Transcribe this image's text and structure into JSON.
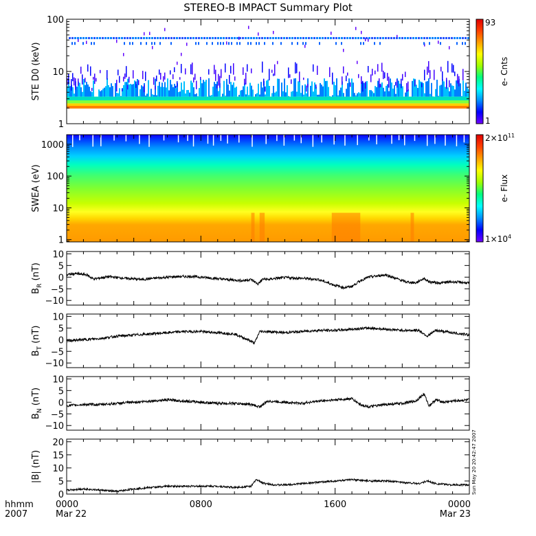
{
  "title": "STEREO-B IMPACT Summary Plot",
  "timestamp_label": "Sun May 20 20:42:47 2007",
  "x_axis": {
    "row1_label": "hhmm",
    "row2_label": "2007",
    "ticks": [
      {
        "t": 0,
        "row1": "0000",
        "row2": "Mar 22"
      },
      {
        "t": 8,
        "row1": "0800",
        "row2": ""
      },
      {
        "t": 16,
        "row1": "1600",
        "row2": ""
      },
      {
        "t": 24,
        "row1": "0000",
        "row2": "Mar 23"
      }
    ],
    "range_hours": [
      0,
      24
    ]
  },
  "colors": {
    "colorbar": [
      "#7000ff",
      "#0000ff",
      "#0090ff",
      "#00ffff",
      "#00ff80",
      "#a0ff00",
      "#ffff00",
      "#ffa000",
      "#ff4000",
      "#e00000"
    ],
    "line": "#000000"
  },
  "chart_data": [
    {
      "type": "heatmap",
      "panel": "ste",
      "ylabel": "STE D0 (keV)",
      "yscale": "log",
      "ylim": [
        1,
        100
      ],
      "yticks": [
        {
          "v": 1,
          "label": "1"
        },
        {
          "v": 10,
          "label": "10"
        },
        {
          "v": 100,
          "label": "100"
        }
      ],
      "colorbar_label": "e- Cnts",
      "colorbar_max": "93",
      "colorbar_min": "1",
      "background_band_kev": [
        2,
        5
      ],
      "peak_band_kev": 2.1,
      "constant_line_kev": 43
    },
    {
      "type": "heatmap",
      "panel": "swea",
      "ylabel": "SWEA (eV)",
      "yscale": "log",
      "ylim": [
        0.85,
        2000
      ],
      "yticks": [
        {
          "v": 1,
          "label": "1"
        },
        {
          "v": 10,
          "label": "10"
        },
        {
          "v": 100,
          "label": "100"
        },
        {
          "v": 1000,
          "label": "1000"
        }
      ],
      "colorbar_label": "e- Flux",
      "colorbar_max": "2×10",
      "colorbar_max_exp": "11",
      "colorbar_min": "1×10",
      "colorbar_min_exp": "4"
    },
    {
      "type": "line",
      "panel": "br",
      "ylabel": "B",
      "ylabel_sub": "R",
      "ylabel_unit": "(nT)",
      "ylim": [
        -12,
        11
      ],
      "yticks": [
        {
          "v": -10,
          "label": "−10"
        },
        {
          "v": -5,
          "label": "−5"
        },
        {
          "v": 0,
          "label": "0"
        },
        {
          "v": 5,
          "label": "5"
        },
        {
          "v": 10,
          "label": "10"
        }
      ],
      "x_hours": [
        0,
        0.5,
        1.2,
        1.6,
        2.5,
        3.5,
        4.5,
        5.5,
        6.5,
        7.5,
        8.5,
        9.5,
        10.5,
        11.0,
        11.4,
        11.7,
        12.0,
        12.5,
        13.0,
        14.0,
        15.0,
        16.0,
        16.5,
        17.0,
        17.5,
        18.0,
        18.5,
        19.0,
        19.6,
        20.2,
        20.8,
        21.3,
        21.6,
        22.2,
        23.0,
        24.0
      ],
      "values": [
        1.0,
        1.5,
        1.0,
        -0.8,
        0.2,
        -0.5,
        -1.0,
        -0.3,
        0.2,
        0.3,
        -0.3,
        -1.0,
        -1.5,
        -1.0,
        -3.0,
        -0.8,
        -1.0,
        -0.5,
        -0.2,
        -0.5,
        -1.0,
        -3.5,
        -4.5,
        -4.0,
        -1.5,
        0.0,
        0.5,
        1.0,
        -0.5,
        -2.0,
        -2.5,
        -0.5,
        -2.0,
        -2.5,
        -2.0,
        -2.5
      ]
    },
    {
      "type": "line",
      "panel": "bt",
      "ylabel": "B",
      "ylabel_sub": "T",
      "ylabel_unit": "(nT)",
      "ylim": [
        -12,
        11
      ],
      "yticks": [
        {
          "v": -10,
          "label": "−10"
        },
        {
          "v": -5,
          "label": "−5"
        },
        {
          "v": 0,
          "label": "0"
        },
        {
          "v": 5,
          "label": "5"
        },
        {
          "v": 10,
          "label": "10"
        }
      ],
      "x_hours": [
        0,
        1.0,
        2.0,
        3.0,
        4.0,
        5.0,
        6.0,
        7.0,
        8.0,
        9.0,
        10.0,
        10.8,
        11.2,
        11.5,
        12.0,
        13.0,
        14.0,
        15.0,
        16.0,
        17.0,
        18.0,
        19.0,
        20.0,
        21.0,
        21.5,
        22.0,
        23.0,
        24.0
      ],
      "values": [
        -0.5,
        0.0,
        0.5,
        1.5,
        2.0,
        2.5,
        3.0,
        3.5,
        3.5,
        3.0,
        2.5,
        0.0,
        -1.5,
        3.5,
        3.5,
        3.0,
        3.5,
        4.0,
        4.0,
        4.5,
        5.0,
        4.5,
        4.0,
        4.0,
        1.5,
        4.0,
        3.0,
        2.0
      ]
    },
    {
      "type": "line",
      "panel": "bn",
      "ylabel": "B",
      "ylabel_sub": "N",
      "ylabel_unit": "(nT)",
      "ylim": [
        -12,
        11
      ],
      "yticks": [
        {
          "v": -10,
          "label": "−10"
        },
        {
          "v": -5,
          "label": "−5"
        },
        {
          "v": 0,
          "label": "0"
        },
        {
          "v": 5,
          "label": "5"
        },
        {
          "v": 10,
          "label": "10"
        }
      ],
      "x_hours": [
        0,
        1.0,
        2.0,
        3.0,
        4.0,
        5.0,
        6.0,
        7.0,
        8.0,
        9.0,
        10.0,
        11.0,
        11.5,
        12.0,
        13.0,
        14.0,
        15.0,
        16.0,
        17.0,
        17.5,
        18.0,
        19.0,
        20.0,
        20.8,
        21.3,
        21.6,
        22.0,
        22.5,
        23.0,
        24.0
      ],
      "values": [
        -1.5,
        -1.0,
        -1.0,
        -0.5,
        0.0,
        0.5,
        1.0,
        0.5,
        0.0,
        -0.5,
        -0.5,
        -1.0,
        -2.0,
        0.5,
        0.0,
        -0.5,
        0.5,
        1.0,
        1.5,
        -1.0,
        -2.0,
        -1.0,
        -0.5,
        0.5,
        3.5,
        -1.5,
        1.0,
        0.0,
        0.5,
        1.0
      ]
    },
    {
      "type": "line",
      "panel": "bmag",
      "ylabel": "|B| (nT)",
      "ylim": [
        0,
        21
      ],
      "yticks": [
        {
          "v": 0,
          "label": "0"
        },
        {
          "v": 5,
          "label": "5"
        },
        {
          "v": 10,
          "label": "10"
        },
        {
          "v": 15,
          "label": "15"
        },
        {
          "v": 20,
          "label": "20"
        }
      ],
      "x_hours": [
        0,
        1.0,
        2.0,
        3.0,
        4.0,
        5.0,
        6.0,
        7.0,
        8.0,
        9.0,
        10.0,
        11.0,
        11.3,
        11.8,
        12.5,
        13.0,
        14.0,
        15.0,
        16.0,
        17.0,
        18.0,
        19.0,
        20.0,
        21.0,
        21.5,
        22.0,
        23.0,
        24.0
      ],
      "values": [
        1.5,
        2.0,
        1.5,
        1.0,
        2.0,
        2.5,
        3.0,
        3.0,
        3.0,
        3.0,
        2.5,
        3.0,
        5.5,
        4.0,
        3.5,
        3.5,
        4.0,
        4.5,
        5.0,
        5.5,
        5.0,
        5.0,
        4.5,
        4.0,
        5.0,
        4.0,
        3.5,
        3.5
      ]
    }
  ]
}
